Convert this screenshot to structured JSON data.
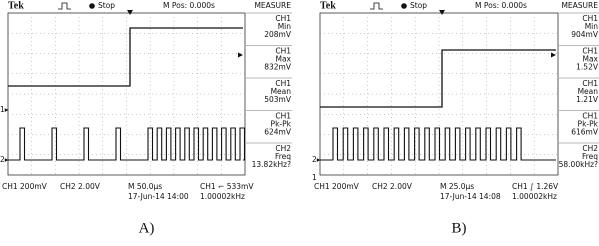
{
  "panels": [
    {
      "caption": "A)",
      "header": {
        "brand": "Tek",
        "status": "Stop",
        "position": "M Pos: 0.000s"
      },
      "markers": [
        "1▸",
        "2▸"
      ],
      "measure": {
        "title": "MEASURE",
        "items": [
          {
            "channel": "CH1",
            "name": "Min",
            "value": "208mV"
          },
          {
            "channel": "CH1",
            "name": "Max",
            "value": "832mV"
          },
          {
            "channel": "CH1",
            "name": "Mean",
            "value": "503mV"
          },
          {
            "channel": "CH1",
            "name": "Pk-Pk",
            "value": "624mV"
          },
          {
            "channel": "CH2",
            "name": "Freq",
            "value": "13.82kHz?"
          }
        ]
      },
      "footer": {
        "ch1": "CH1  200mV",
        "ch2": "CH2  2.00V",
        "timebase": "M 50.0µs",
        "trigger": "CH1 ⌐ 533mV",
        "date": "17-Jun-14 14:00",
        "freq": "1.00002kHz"
      }
    },
    {
      "caption": "B)",
      "header": {
        "brand": "Tek",
        "status": "Stop",
        "position": "M Pos: 0.000s"
      },
      "markers": [
        "2▸",
        "1"
      ],
      "measure": {
        "title": "MEASURE",
        "items": [
          {
            "channel": "CH1",
            "name": "Min",
            "value": "904mV"
          },
          {
            "channel": "CH1",
            "name": "Max",
            "value": "1.52V"
          },
          {
            "channel": "CH1",
            "name": "Mean",
            "value": "1.21V"
          },
          {
            "channel": "CH1",
            "name": "Pk-Pk",
            "value": "616mV"
          },
          {
            "channel": "CH2",
            "name": "Freq",
            "value": "58.00kHz?"
          }
        ]
      },
      "footer": {
        "ch1": "CH1  200mV",
        "ch2": "CH2  2.00V",
        "timebase": "M 25.0µs",
        "trigger": "CH1 ∫ 1.26V",
        "date": "17-Jun-14 14:08",
        "freq": "1.00002kHz"
      }
    }
  ]
}
